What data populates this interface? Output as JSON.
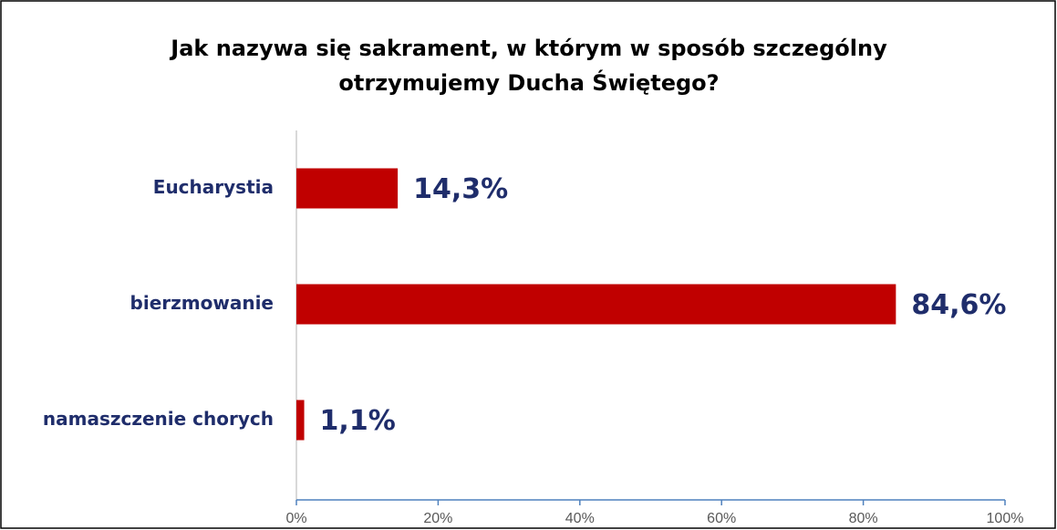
{
  "chart_data": {
    "type": "hbar",
    "title": "Jak nazywa się sakrament, w którym w sposób szczególny otrzymujemy Ducha Świętego?",
    "categories": [
      "Eucharystia",
      "bierzmowanie",
      "namaszczenie chorych"
    ],
    "values": [
      14.3,
      84.6,
      1.1
    ],
    "value_labels": [
      "14,3%",
      "84,6%",
      "1,1%"
    ],
    "color": "#c00000",
    "xlim": [
      0,
      100
    ],
    "xticks": [
      {
        "value": 0,
        "label": "0%"
      },
      {
        "value": 20,
        "label": "20%"
      },
      {
        "value": 40,
        "label": "40%"
      },
      {
        "value": 60,
        "label": "60%"
      },
      {
        "value": 80,
        "label": "80%"
      },
      {
        "value": 100,
        "label": "100%"
      }
    ],
    "grid": false
  }
}
